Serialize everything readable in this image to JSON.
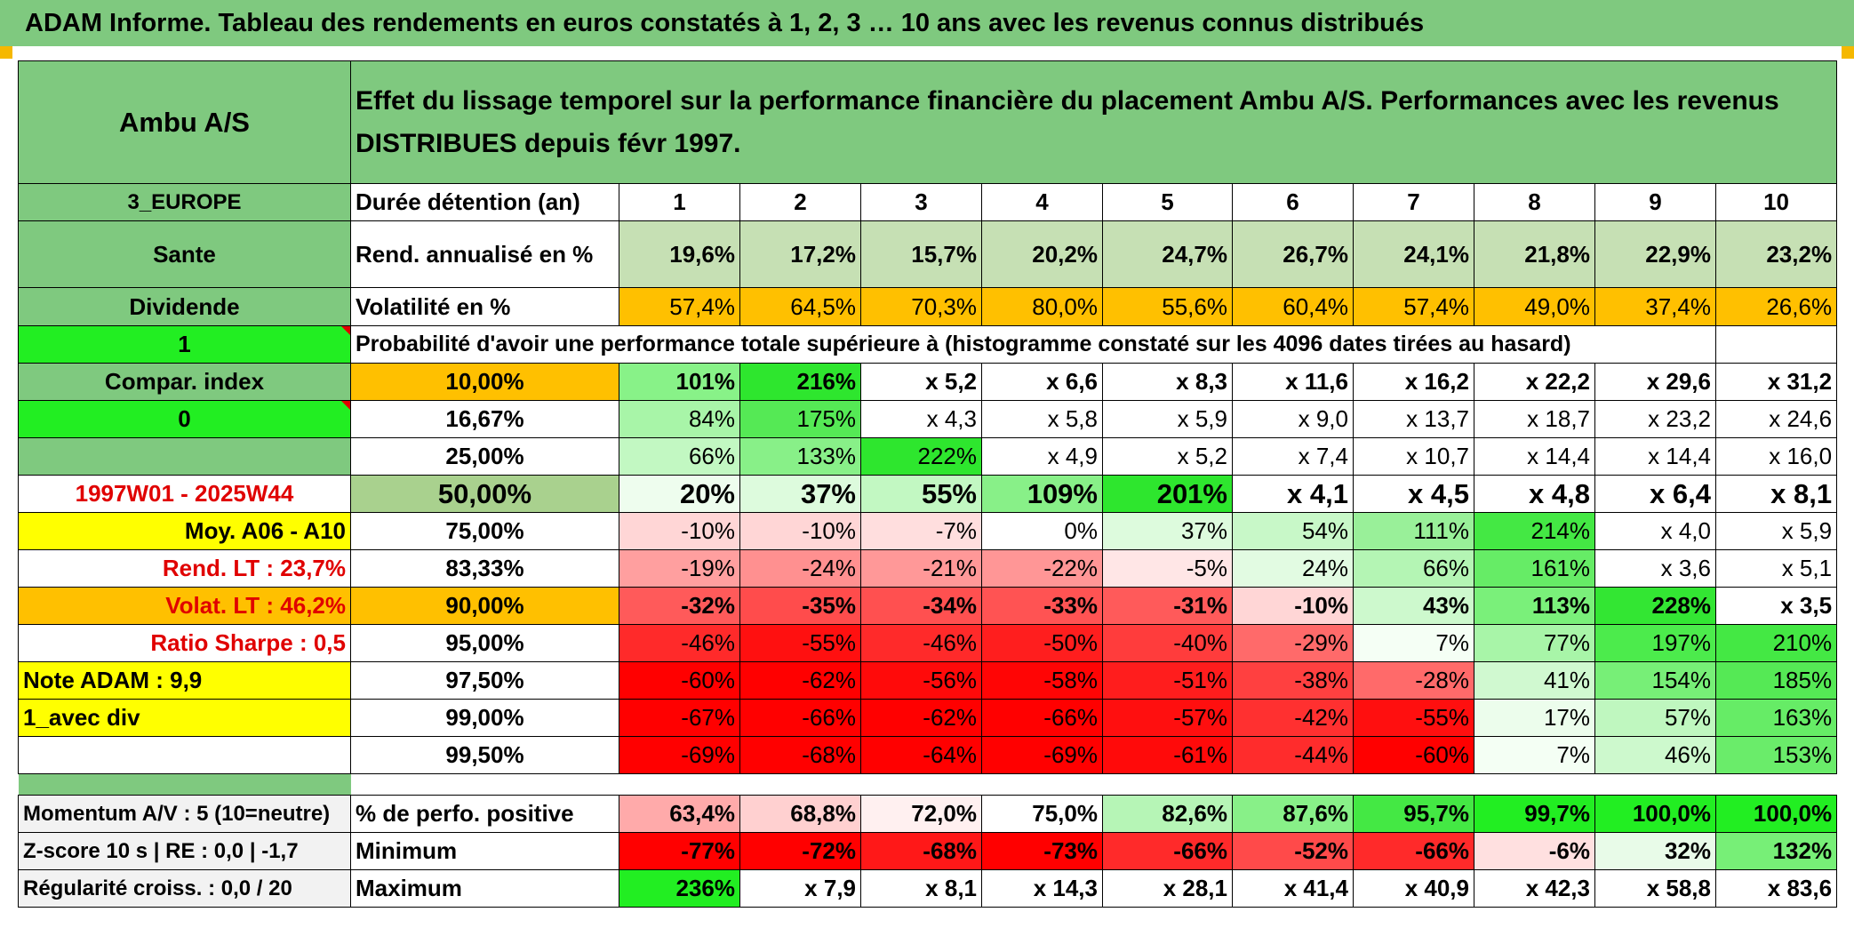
{
  "title": "ADAM Informe. Tableau des rendements en euros constatés à 1, 2, 3 … 10 ans avec les revenus connus distribués",
  "header": {
    "name": "Ambu A/S",
    "description": "Effet du lissage temporel sur la performance financière du placement Ambu A/S. Performances avec les revenus DISTRIBUES depuis févr 1997."
  },
  "durations_label": "Durée détention (an)",
  "durations": [
    "1",
    "2",
    "3",
    "4",
    "5",
    "6",
    "7",
    "8",
    "9",
    "10"
  ],
  "side": {
    "region": "3_EUROPE",
    "sector": "Sante",
    "dividend": "Dividende",
    "one": "1",
    "compar": "Compar. index",
    "zero": "0",
    "period": "1997W01 - 2025W44",
    "moy": "Moy. A06 - A10",
    "rend_lt": "Rend. LT :   23,7%",
    "volat_lt": "Volat. LT :   46,2%",
    "sharpe": "Ratio Sharpe :   0,5",
    "note": "Note ADAM : 9,9",
    "avec_div": "1_avec div"
  },
  "rend": {
    "label": "Rend. annualisé en %",
    "values": [
      "19,6%",
      "17,2%",
      "15,7%",
      "20,2%",
      "24,7%",
      "26,7%",
      "24,1%",
      "21,8%",
      "22,9%",
      "23,2%"
    ]
  },
  "vol": {
    "label": "Volatilité en %",
    "values": [
      "57,4%",
      "64,5%",
      "70,3%",
      "80,0%",
      "55,6%",
      "60,4%",
      "57,4%",
      "49,0%",
      "37,4%",
      "26,6%"
    ]
  },
  "prob_title": "Probabilité d'avoir une performance totale supérieure à (histogramme constaté sur les 4096 dates tirées au hasard)",
  "prob_rows": [
    {
      "p": "10,00%",
      "values": [
        "101%",
        "216%",
        "x 5,2",
        "x 6,6",
        "x 8,3",
        "x 11,6",
        "x 16,2",
        "x 22,2",
        "x 29,6",
        "x 31,2"
      ]
    },
    {
      "p": "16,67%",
      "values": [
        "84%",
        "175%",
        "x 4,3",
        "x 5,8",
        "x 5,9",
        "x 9,0",
        "x 13,7",
        "x 18,7",
        "x 23,2",
        "x 24,6"
      ]
    },
    {
      "p": "25,00%",
      "values": [
        "66%",
        "133%",
        "222%",
        "x 4,9",
        "x 5,2",
        "x 7,4",
        "x 10,7",
        "x 14,4",
        "x 14,4",
        "x 16,0"
      ]
    },
    {
      "p": "50,00%",
      "values": [
        "20%",
        "37%",
        "55%",
        "109%",
        "201%",
        "x 4,1",
        "x 4,5",
        "x 4,8",
        "x 6,4",
        "x 8,1"
      ]
    },
    {
      "p": "75,00%",
      "values": [
        "-10%",
        "-10%",
        "-7%",
        "0%",
        "37%",
        "54%",
        "111%",
        "214%",
        "x 4,0",
        "x 5,9"
      ]
    },
    {
      "p": "83,33%",
      "values": [
        "-19%",
        "-24%",
        "-21%",
        "-22%",
        "-5%",
        "24%",
        "66%",
        "161%",
        "x 3,6",
        "x 5,1"
      ]
    },
    {
      "p": "90,00%",
      "values": [
        "-32%",
        "-35%",
        "-34%",
        "-33%",
        "-31%",
        "-10%",
        "43%",
        "113%",
        "228%",
        "x 3,5"
      ]
    },
    {
      "p": "95,00%",
      "values": [
        "-46%",
        "-55%",
        "-46%",
        "-50%",
        "-40%",
        "-29%",
        "7%",
        "77%",
        "197%",
        "210%"
      ]
    },
    {
      "p": "97,50%",
      "values": [
        "-60%",
        "-62%",
        "-56%",
        "-58%",
        "-51%",
        "-38%",
        "-28%",
        "41%",
        "154%",
        "185%"
      ]
    },
    {
      "p": "99,00%",
      "values": [
        "-67%",
        "-66%",
        "-62%",
        "-66%",
        "-57%",
        "-42%",
        "-55%",
        "17%",
        "57%",
        "163%"
      ]
    },
    {
      "p": "99,50%",
      "values": [
        "-69%",
        "-68%",
        "-64%",
        "-69%",
        "-61%",
        "-44%",
        "-60%",
        "7%",
        "46%",
        "153%"
      ]
    }
  ],
  "footer": [
    {
      "left": "Momentum A/V : 5 (10=neutre)",
      "label": "% de perfo. positive",
      "values": [
        "63,4%",
        "68,8%",
        "72,0%",
        "75,0%",
        "82,6%",
        "87,6%",
        "95,7%",
        "99,7%",
        "100,0%",
        "100,0%"
      ]
    },
    {
      "left": "Z-score 10 s | RE : 0,0 | -1,7",
      "label": "Minimum",
      "values": [
        "-77%",
        "-72%",
        "-68%",
        "-73%",
        "-66%",
        "-52%",
        "-66%",
        "-6%",
        "32%",
        "132%"
      ]
    },
    {
      "left": "Régularité croiss. : 0,0 / 20",
      "label": "Maximum",
      "values": [
        "236%",
        "x 7,9",
        "x 8,1",
        "x 14,3",
        "x 28,1",
        "x 41,4",
        "x 40,9",
        "x 42,3",
        "x 58,8",
        "x 83,6"
      ]
    }
  ],
  "colors": {
    "header_green": "#7fc97f",
    "bright_green": "#22ee22",
    "orange": "#ffc000",
    "yellow": "#ffff00",
    "red": "#ff0000"
  },
  "cell_colors": {
    "rend": [
      "#c6e0b4",
      "#c6e0b4",
      "#c6e0b4",
      "#c6e0b4",
      "#c6e0b4",
      "#c6e0b4",
      "#c6e0b4",
      "#c6e0b4",
      "#c6e0b4",
      "#c6e0b4"
    ],
    "vol": [
      "#ffc000",
      "#ffc000",
      "#ffc000",
      "#ffc000",
      "#ffc000",
      "#ffc000",
      "#ffc000",
      "#ffc000",
      "#ffc000",
      "#ffc000"
    ],
    "prob": [
      [
        "#88f288",
        "#2ee62e",
        "#ffffff",
        "#ffffff",
        "#ffffff",
        "#ffffff",
        "#ffffff",
        "#ffffff",
        "#ffffff",
        "#ffffff"
      ],
      [
        "#a8f5a8",
        "#55e955",
        "#ffffff",
        "#ffffff",
        "#ffffff",
        "#ffffff",
        "#ffffff",
        "#ffffff",
        "#ffffff",
        "#ffffff"
      ],
      [
        "#c2f8c2",
        "#88f088",
        "#2ee62e",
        "#ffffff",
        "#ffffff",
        "#ffffff",
        "#ffffff",
        "#ffffff",
        "#ffffff",
        "#ffffff"
      ],
      [
        "#eefdee",
        "#ddfbdd",
        "#c2f8c2",
        "#88f088",
        "#2ee62e",
        "#ffffff",
        "#ffffff",
        "#ffffff",
        "#ffffff",
        "#ffffff"
      ],
      [
        "#ffd6d6",
        "#ffd6d6",
        "#ffdede",
        "#ffffff",
        "#ddfbdd",
        "#c8f8c8",
        "#99f099",
        "#44e844",
        "#ffffff",
        "#ffffff"
      ],
      [
        "#ff9f9f",
        "#ff9090",
        "#ff9898",
        "#ff9696",
        "#ffe6e6",
        "#e2fbe2",
        "#b4f5b4",
        "#66ec66",
        "#ffffff",
        "#ffffff"
      ],
      [
        "#ff5a5a",
        "#ff4c4c",
        "#ff5050",
        "#ff5353",
        "#ff5a5a",
        "#ffd6d6",
        "#cdf9cd",
        "#7af07a",
        "#33e633",
        "#ffffff"
      ],
      [
        "#ff2a2a",
        "#ff1010",
        "#ff2a2a",
        "#ff1e1e",
        "#ff3c3c",
        "#ff6a6a",
        "#f5fff5",
        "#a8f5a8",
        "#4ceb4c",
        "#44e844"
      ],
      [
        "#ff0000",
        "#ff0000",
        "#ff0a0a",
        "#ff0505",
        "#ff1d1d",
        "#ff4040",
        "#ff6a6a",
        "#d0f9d0",
        "#77ef77",
        "#55e955"
      ],
      [
        "#ff0000",
        "#ff0000",
        "#ff0000",
        "#ff0000",
        "#ff0f0f",
        "#ff3030",
        "#ff0f0f",
        "#ecfdec",
        "#bff7bf",
        "#66ec66"
      ],
      [
        "#ff0000",
        "#ff0000",
        "#ff0000",
        "#ff0000",
        "#ff0a0a",
        "#ff2c2c",
        "#ff0000",
        "#f4fff4",
        "#cdf9cd",
        "#6aec6a"
      ]
    ],
    "footer": [
      [
        "#ffaaaa",
        "#ffd0d0",
        "#fff0f0",
        "#ffffff",
        "#b6f5b6",
        "#88f088",
        "#44e844",
        "#22ee22",
        "#22ee22",
        "#22ee22"
      ],
      [
        "#ff0000",
        "#ff0000",
        "#ff1818",
        "#ff0000",
        "#ff2a2a",
        "#ff4a4a",
        "#ff2a2a",
        "#ffe0e0",
        "#e8fbe8",
        "#77ef77"
      ],
      [
        "#22ee22",
        "#ffffff",
        "#ffffff",
        "#ffffff",
        "#ffffff",
        "#ffffff",
        "#ffffff",
        "#ffffff",
        "#ffffff",
        "#ffffff"
      ]
    ]
  }
}
